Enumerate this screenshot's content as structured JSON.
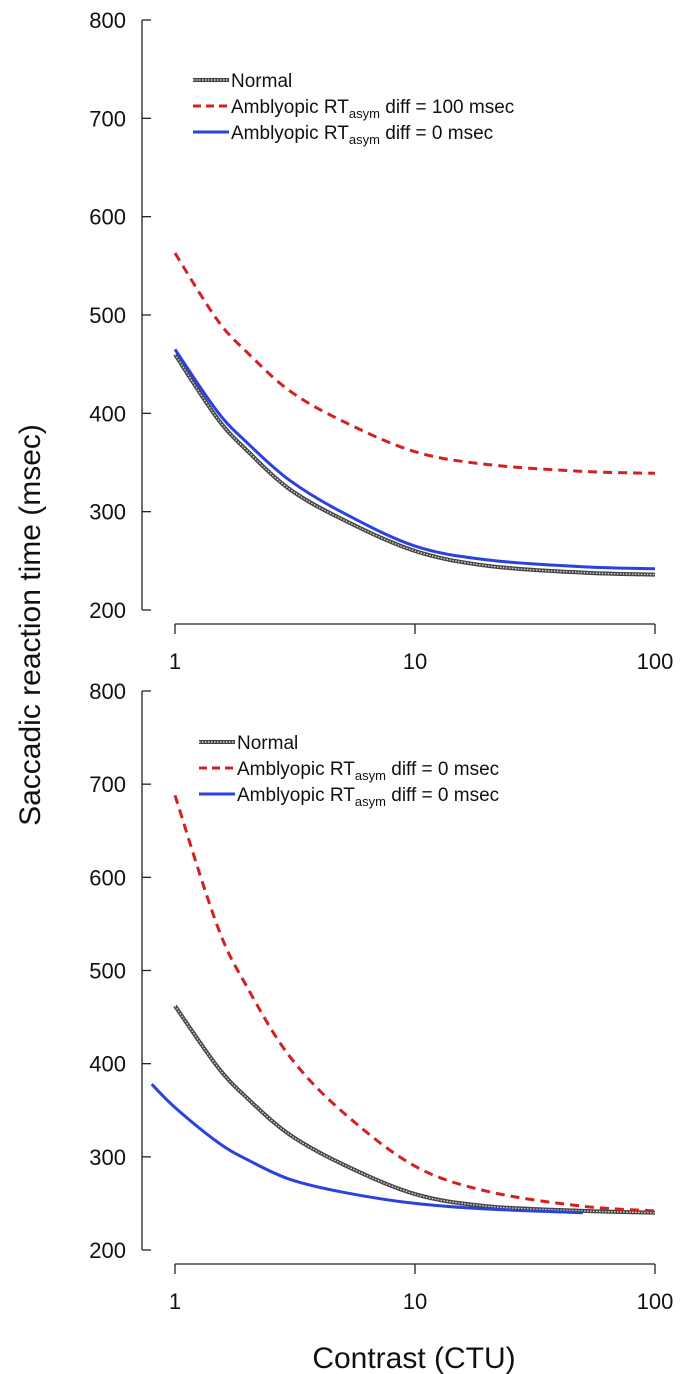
{
  "shared_ylabel": "Saccadic reaction time (msec)",
  "shared_xlabel": "Contrast (CTU)",
  "chart_data": [
    {
      "type": "line",
      "xscale": "log",
      "xlim": [
        1,
        100
      ],
      "ylim": [
        200,
        800
      ],
      "xticks": [
        1,
        10,
        100
      ],
      "xtick_labels": [
        "1",
        "10",
        "100"
      ],
      "yticks": [
        200,
        300,
        400,
        500,
        600,
        700,
        800
      ],
      "ytick_labels": [
        "200",
        "300",
        "400",
        "500",
        "600",
        "700",
        "800"
      ],
      "legend_position": "top-left",
      "series": [
        {
          "name": "Normal",
          "legend": {
            "pre": "Normal",
            "sub": "",
            "post": ""
          },
          "style": "textured",
          "color": "#555555",
          "x": [
            1,
            1.5,
            2,
            3,
            5,
            10,
            20,
            50,
            100
          ],
          "y": [
            460,
            395,
            362,
            323,
            292,
            260,
            245,
            238,
            236
          ]
        },
        {
          "name": "Amblyopic RTasym diff = 100 msec",
          "legend": {
            "pre": "Amblyopic RT",
            "sub": "asym",
            "post": " diff = 100 msec"
          },
          "style": "dashed",
          "color": "#d42020",
          "x": [
            1,
            1.5,
            2,
            3,
            5,
            10,
            20,
            50,
            100
          ],
          "y": [
            563,
            495,
            462,
            423,
            392,
            361,
            348,
            341,
            339
          ]
        },
        {
          "name": "Amblyopic RTasym diff = 0 msec",
          "legend": {
            "pre": "Amblyopic RT",
            "sub": "asym",
            "post": " diff = 0 msec"
          },
          "style": "solid",
          "color": "#2a43e0",
          "x": [
            1,
            1.5,
            2,
            3,
            5,
            10,
            20,
            50,
            100
          ],
          "y": [
            465,
            402,
            370,
            332,
            299,
            265,
            251,
            244,
            242
          ]
        }
      ]
    },
    {
      "type": "line",
      "xscale": "log",
      "xlim": [
        1,
        100
      ],
      "ylim": [
        200,
        800
      ],
      "xticks": [
        1,
        10,
        100
      ],
      "xtick_labels": [
        "1",
        "10",
        "100"
      ],
      "yticks": [
        200,
        300,
        400,
        500,
        600,
        700,
        800
      ],
      "ytick_labels": [
        "200",
        "300",
        "400",
        "500",
        "600",
        "700",
        "800"
      ],
      "legend_position": "top-left",
      "series": [
        {
          "name": "Normal",
          "legend": {
            "pre": "Normal",
            "sub": "",
            "post": ""
          },
          "style": "textured",
          "color": "#555555",
          "x": [
            1,
            1.5,
            2,
            3,
            5,
            10,
            20,
            50,
            100
          ],
          "y": [
            462,
            397,
            363,
            324,
            292,
            260,
            247,
            242,
            240
          ]
        },
        {
          "name": "Amblyopic RTasym diff = 0 msec",
          "legend": {
            "pre": "Amblyopic RT",
            "sub": "asym",
            "post": " diff = 0 msec"
          },
          "style": "dashed",
          "color": "#d42020",
          "x": [
            1,
            1.5,
            2,
            3,
            5,
            10,
            20,
            50,
            100
          ],
          "y": [
            688,
            548,
            482,
            408,
            348,
            290,
            263,
            247,
            242
          ]
        },
        {
          "name": "Amblyopic RTasym diff = 0 msec",
          "legend": {
            "pre": "Amblyopic RT",
            "sub": "asym",
            "post": " diff = 0 msec"
          },
          "style": "solid",
          "color": "#2a43e0",
          "x": [
            0.8,
            1,
            1.5,
            2,
            3,
            5,
            10,
            20,
            50
          ],
          "y": [
            378,
            353,
            316,
            297,
            276,
            262,
            250,
            244,
            240
          ]
        }
      ]
    }
  ]
}
